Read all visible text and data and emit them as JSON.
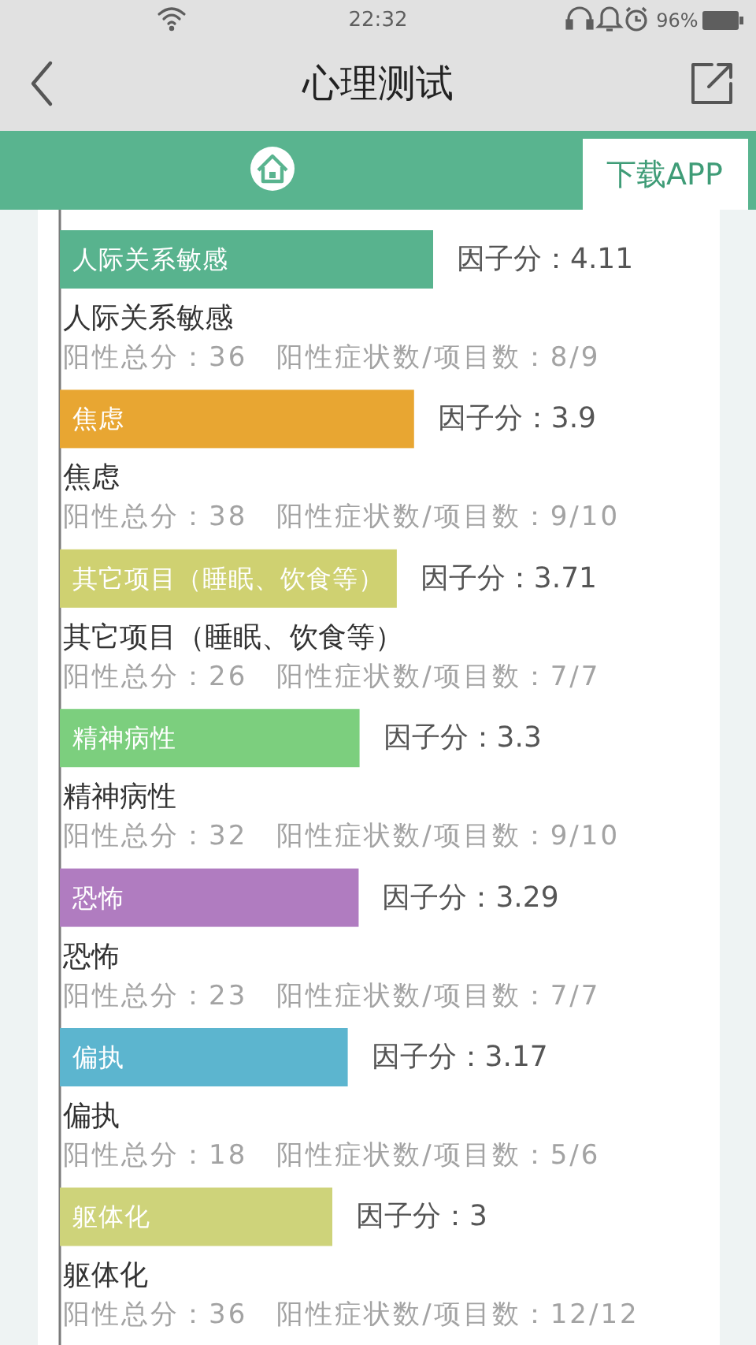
{
  "chart_data": {
    "type": "bar",
    "orientation": "horizontal",
    "title": "心理测试",
    "categories": [
      "人际关系敏感",
      "焦虑",
      "其它项目（睡眠、饮食等）",
      "精神病性",
      "恐怖",
      "偏执",
      "躯体化"
    ],
    "values": [
      4.11,
      3.9,
      3.71,
      3.3,
      3.29,
      3.17,
      3
    ],
    "colors": [
      "#58b38e",
      "#e8a632",
      "#cfd171",
      "#7ccf7e",
      "#b07cc0",
      "#5cb5cf",
      "#ced37a"
    ],
    "value_labels": [
      "因子分：4.11",
      "因子分：3.9",
      "因子分：3.71",
      "因子分：3.3",
      "因子分：3.29",
      "因子分：3.17",
      "因子分：3"
    ],
    "annotations": [
      "22:32",
      "96%",
      "下载APP",
      "阳性总分：36　阳性症状数/项目数：8/9",
      "阳性总分：38　阳性症状数/项目数：9/10",
      "阳性总分：26　阳性症状数/项目数：7/7",
      "阳性总分：32　阳性症状数/项目数：9/10",
      "阳性总分：23　阳性症状数/项目数：7/7",
      "阳性总分：18　阳性症状数/项目数：5/6",
      "阳性总分：36　阳性症状数/项目数：12/12"
    ]
  }
}
